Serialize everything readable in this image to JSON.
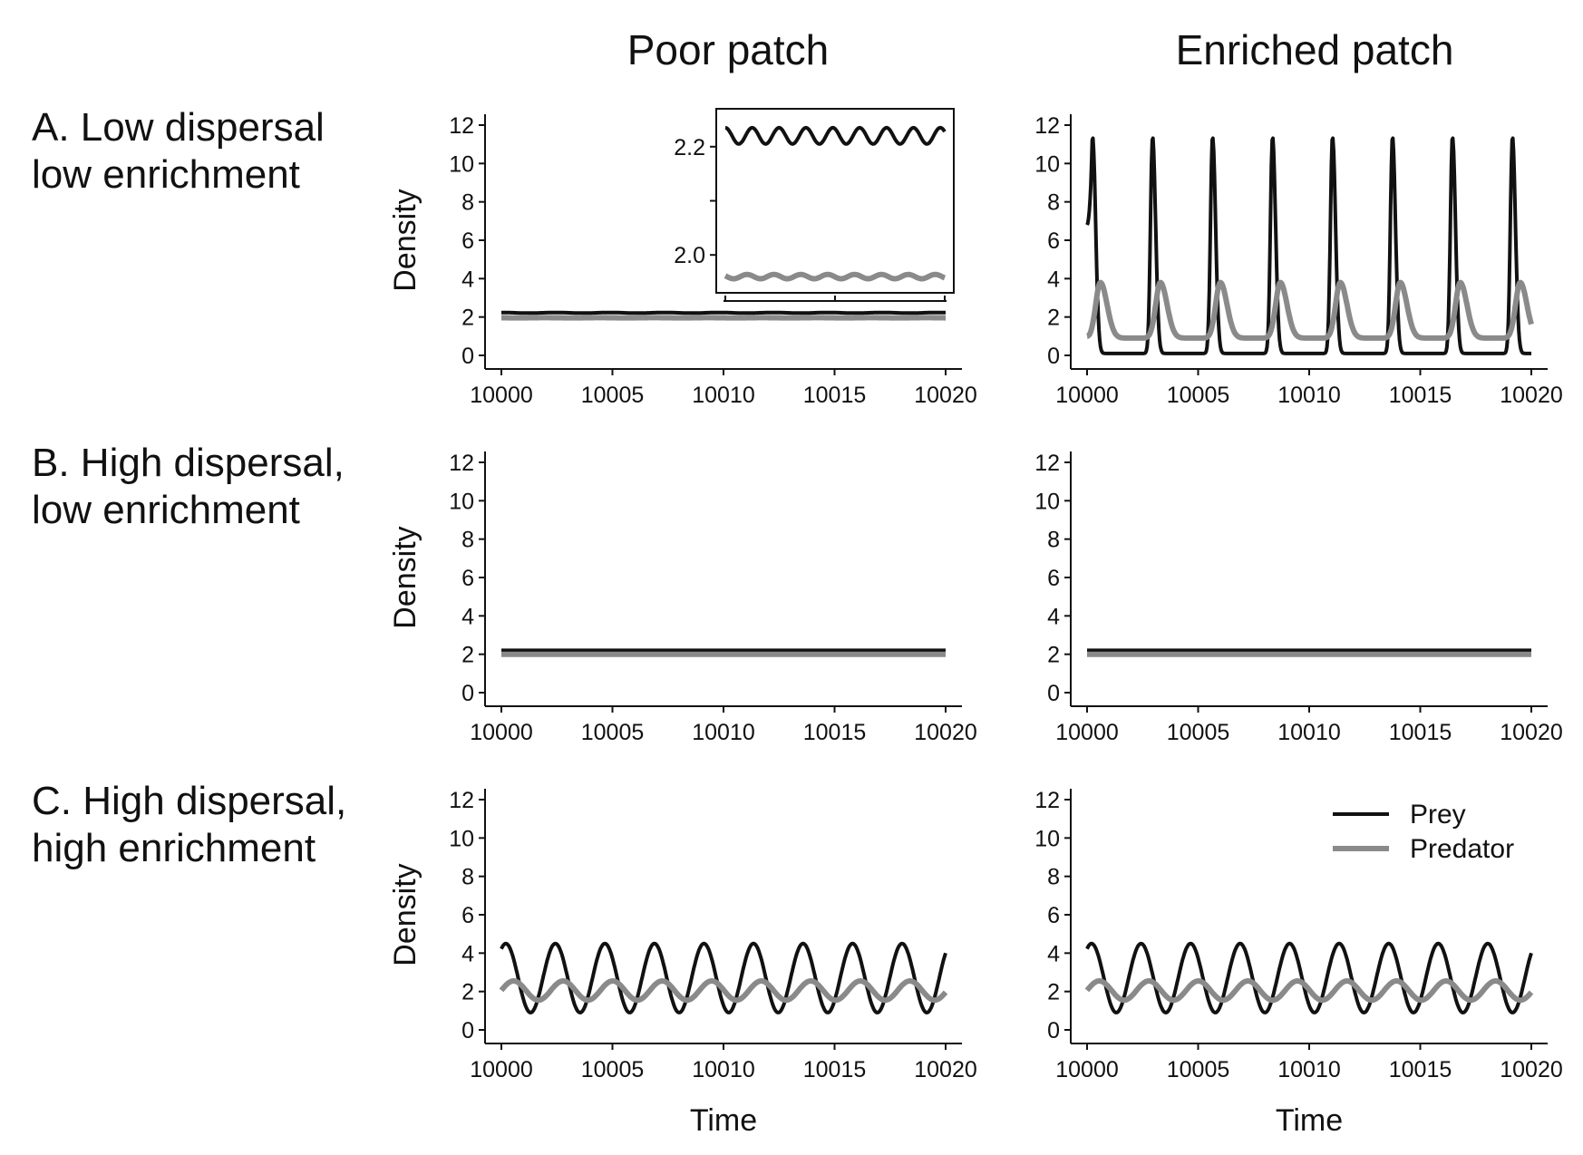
{
  "figure": {
    "column_titles": [
      "Poor patch",
      "Enriched patch"
    ],
    "row_labels": [
      [
        "A. Low dispersal",
        "low enrichment"
      ],
      [
        "B. High dispersal,",
        "low enrichment"
      ],
      [
        "C. High dispersal,",
        "high enrichment"
      ]
    ],
    "y_axis_label": "Density",
    "x_axis_label": "Time",
    "legend": {
      "items": [
        "Prey",
        "Predator"
      ],
      "placement": "top-right of panel C enriched patch"
    },
    "colors": {
      "prey": "#111111",
      "predator": "#8a8a8a"
    }
  },
  "chart_data": [
    {
      "panel": "A-poor",
      "type": "line",
      "xlim": [
        10000,
        10020
      ],
      "ylim": [
        0,
        12
      ],
      "x_ticks": [
        10000,
        10005,
        10010,
        10015,
        10020
      ],
      "y_ticks": [
        0,
        2,
        4,
        6,
        8,
        10,
        12
      ],
      "ylabel": "Density",
      "series": [
        {
          "name": "Prey",
          "kind": "sine",
          "mean": 2.22,
          "amp": 0.015,
          "period": 2.45,
          "phase": 0
        },
        {
          "name": "Predator",
          "kind": "sine",
          "mean": 1.96,
          "amp": 0.004,
          "period": 2.45,
          "phase": 1.2
        }
      ],
      "inset": {
        "ylim": [
          1.93,
          2.27
        ],
        "y_ticks": [
          2.0,
          2.2
        ],
        "y_tick_labels": [
          "2.0",
          "2.2"
        ]
      }
    },
    {
      "panel": "A-enriched",
      "type": "line",
      "xlim": [
        10000,
        10020
      ],
      "ylim": [
        0,
        12
      ],
      "x_ticks": [
        10000,
        10005,
        10010,
        10015,
        10020
      ],
      "y_ticks": [
        0,
        2,
        4,
        6,
        8,
        10,
        12
      ],
      "series": [
        {
          "name": "Prey",
          "kind": "pulse",
          "base": 0.1,
          "peak": 11.4,
          "period": 2.7,
          "first_peak": 0.25,
          "width": 0.27,
          "start": 6.8
        },
        {
          "name": "Predator",
          "kind": "pulse",
          "base": 0.9,
          "peak": 3.8,
          "period": 2.7,
          "first_peak": 0.6,
          "width": 0.6,
          "start": 1.0
        }
      ]
    },
    {
      "panel": "B-poor",
      "type": "line",
      "xlim": [
        10000,
        10020
      ],
      "ylim": [
        0,
        12
      ],
      "x_ticks": [
        10000,
        10005,
        10010,
        10015,
        10020
      ],
      "y_ticks": [
        0,
        2,
        4,
        6,
        8,
        10,
        12
      ],
      "ylabel": "Density",
      "series": [
        {
          "name": "Prey",
          "kind": "const",
          "value": 2.2
        },
        {
          "name": "Predator",
          "kind": "const",
          "value": 2.0
        }
      ]
    },
    {
      "panel": "B-enriched",
      "type": "line",
      "xlim": [
        10000,
        10020
      ],
      "ylim": [
        0,
        12
      ],
      "x_ticks": [
        10000,
        10005,
        10010,
        10015,
        10020
      ],
      "y_ticks": [
        0,
        2,
        4,
        6,
        8,
        10,
        12
      ],
      "series": [
        {
          "name": "Prey",
          "kind": "const",
          "value": 2.2
        },
        {
          "name": "Predator",
          "kind": "const",
          "value": 2.0
        }
      ]
    },
    {
      "panel": "C-poor",
      "type": "line",
      "xlim": [
        10000,
        10020
      ],
      "ylim": [
        0,
        12
      ],
      "x_ticks": [
        10000,
        10005,
        10010,
        10015,
        10020
      ],
      "y_ticks": [
        0,
        2,
        4,
        6,
        8,
        10,
        12
      ],
      "ylabel": "Density",
      "xlabel": "Time",
      "series": [
        {
          "name": "Prey",
          "kind": "sine",
          "mean": 2.7,
          "amp": 1.8,
          "period": 2.23,
          "first_peak": 0.2
        },
        {
          "name": "Predator",
          "kind": "sine",
          "mean": 2.05,
          "amp": 0.5,
          "period": 2.23,
          "first_peak": 0.55
        }
      ]
    },
    {
      "panel": "C-enriched",
      "type": "line",
      "xlim": [
        10000,
        10020
      ],
      "ylim": [
        0,
        12
      ],
      "x_ticks": [
        10000,
        10005,
        10010,
        10015,
        10020
      ],
      "y_ticks": [
        0,
        2,
        4,
        6,
        8,
        10,
        12
      ],
      "xlabel": "Time",
      "series": [
        {
          "name": "Prey",
          "kind": "sine",
          "mean": 2.7,
          "amp": 1.8,
          "period": 2.23,
          "first_peak": 0.2
        },
        {
          "name": "Predator",
          "kind": "sine",
          "mean": 2.05,
          "amp": 0.5,
          "period": 2.23,
          "first_peak": 0.55
        }
      ]
    }
  ]
}
